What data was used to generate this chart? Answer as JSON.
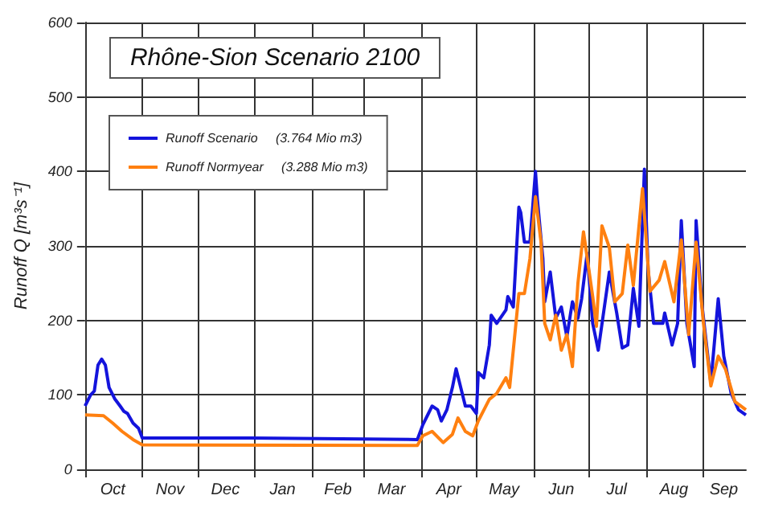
{
  "chart_data": {
    "type": "line",
    "title": "Rhône-Sion Scenario 2100",
    "ylabel": "Runoff Q [m³s⁻¹]",
    "xlim": [
      "2099-10-01",
      "2100-09-24"
    ],
    "ylim": [
      0,
      600
    ],
    "yticks": [
      0,
      100,
      200,
      300,
      400,
      500,
      600
    ],
    "xticks": [
      {
        "value": "2099-10-01",
        "label": null
      },
      {
        "value": "2099-10-16",
        "label": "Oct"
      },
      {
        "value": "2099-11-01",
        "label": null
      },
      {
        "value": "2099-11-16",
        "label": "Nov"
      },
      {
        "value": "2099-12-01",
        "label": null
      },
      {
        "value": "2099-12-16",
        "label": "Dec"
      },
      {
        "value": "2100-01-01",
        "label": null
      },
      {
        "value": "2100-01-16",
        "label": "Jan"
      },
      {
        "value": "2100-02-01",
        "label": null
      },
      {
        "value": "2100-02-15",
        "label": "Feb"
      },
      {
        "value": "2100-03-01",
        "label": null
      },
      {
        "value": "2100-03-16",
        "label": "Mar"
      },
      {
        "value": "2100-04-01",
        "label": null
      },
      {
        "value": "2100-04-16",
        "label": "Apr"
      },
      {
        "value": "2100-05-01",
        "label": null
      },
      {
        "value": "2100-05-16",
        "label": "May"
      },
      {
        "value": "2100-06-01",
        "label": null
      },
      {
        "value": "2100-06-16",
        "label": "Jun"
      },
      {
        "value": "2100-07-01",
        "label": null
      },
      {
        "value": "2100-07-16",
        "label": "Jul"
      },
      {
        "value": "2100-08-01",
        "label": null
      },
      {
        "value": "2100-08-16",
        "label": "Aug"
      },
      {
        "value": "2100-09-01",
        "label": null
      },
      {
        "value": "2100-09-12",
        "label": "Sep"
      }
    ],
    "grid": true,
    "legend": "top left",
    "marker": "none",
    "line_style": "solid",
    "series": [
      {
        "name": "Runoff Scenario     (3.764 Mio m3)",
        "color": "#1414dc",
        "x": [
          "2099-10-01",
          "2099-10-04",
          "2099-10-06",
          "2099-10-08",
          "2099-10-10",
          "2099-10-12",
          "2099-10-14",
          "2099-10-17",
          "2099-10-20",
          "2099-10-22",
          "2099-10-24",
          "2099-10-27",
          "2099-10-30",
          "2099-11-01",
          "2099-12-30",
          "2100-03-30",
          "2100-04-02",
          "2100-04-05",
          "2100-04-07",
          "2100-04-10",
          "2100-04-12",
          "2100-04-15",
          "2100-04-18",
          "2100-04-20",
          "2100-04-22",
          "2100-04-25",
          "2100-04-28",
          "2100-05-01",
          "2100-05-02",
          "2100-05-05",
          "2100-05-08",
          "2100-05-09",
          "2100-05-12",
          "2100-05-17",
          "2100-05-18",
          "2100-05-21",
          "2100-05-24",
          "2100-05-25",
          "2100-05-27",
          "2100-05-30",
          "2100-06-02",
          "2100-06-03",
          "2100-06-06",
          "2100-06-07",
          "2100-06-10",
          "2100-06-13",
          "2100-06-16",
          "2100-06-19",
          "2100-06-22",
          "2100-06-25",
          "2100-06-27",
          "2100-06-30",
          "2100-07-03",
          "2100-07-06",
          "2100-07-12",
          "2100-07-16",
          "2100-07-19",
          "2100-07-22",
          "2100-07-25",
          "2100-07-28",
          "2100-07-31",
          "2100-08-02",
          "2100-08-05",
          "2100-08-10",
          "2100-08-11",
          "2100-08-15",
          "2100-08-18",
          "2100-08-20",
          "2100-08-23",
          "2100-08-27",
          "2100-08-28",
          "2100-08-31",
          "2100-09-05",
          "2100-09-09",
          "2100-09-12",
          "2100-09-16",
          "2100-09-20",
          "2100-09-24"
        ],
        "values": [
          85,
          100,
          105,
          140,
          148,
          140,
          110,
          95,
          85,
          78,
          75,
          62,
          55,
          42,
          42,
          40,
          60,
          75,
          85,
          80,
          65,
          80,
          110,
          135,
          115,
          85,
          85,
          75,
          130,
          123,
          167,
          207,
          196,
          214,
          232,
          218,
          352,
          345,
          305,
          305,
          400,
          363,
          283,
          225,
          265,
          203,
          218,
          178,
          225,
          203,
          229,
          290,
          196,
          160,
          265,
          210,
          163,
          167,
          243,
          192,
          403,
          268,
          196,
          196,
          210,
          167,
          196,
          334,
          196,
          138,
          334,
          225,
          116,
          229,
          152,
          102,
          80,
          73
        ]
      },
      {
        "name": "Runoff Normyear     (3.288 Mio m3)",
        "color": "#ff8010",
        "x": [
          "2099-10-01",
          "2099-10-11",
          "2099-10-16",
          "2099-10-21",
          "2099-10-27",
          "2099-11-01",
          "2100-03-30",
          "2100-04-02",
          "2100-04-07",
          "2100-04-13",
          "2100-04-18",
          "2100-04-21",
          "2100-04-25",
          "2100-04-29",
          "2100-05-02",
          "2100-05-08",
          "2100-05-12",
          "2100-05-17",
          "2100-05-19",
          "2100-05-24",
          "2100-05-27",
          "2100-05-30",
          "2100-06-02",
          "2100-06-05",
          "2100-06-07",
          "2100-06-10",
          "2100-06-13",
          "2100-06-16",
          "2100-06-19",
          "2100-06-22",
          "2100-06-25",
          "2100-06-28",
          "2100-07-03",
          "2100-07-05",
          "2100-07-08",
          "2100-07-12",
          "2100-07-15",
          "2100-07-19",
          "2100-07-22",
          "2100-07-25",
          "2100-07-30",
          "2100-08-03",
          "2100-08-08",
          "2100-08-11",
          "2100-08-16",
          "2100-08-20",
          "2100-08-24",
          "2100-08-28",
          "2100-09-01",
          "2100-09-05",
          "2100-09-09",
          "2100-09-13",
          "2100-09-18",
          "2100-09-24"
        ],
        "values": [
          73,
          72,
          62,
          51,
          40,
          33,
          32,
          45,
          51,
          36,
          47,
          69,
          51,
          45,
          65,
          94,
          102,
          123,
          110,
          236,
          236,
          283,
          366,
          305,
          196,
          174,
          207,
          160,
          181,
          138,
          250,
          319,
          232,
          192,
          327,
          298,
          225,
          236,
          301,
          247,
          377,
          239,
          254,
          279,
          225,
          308,
          181,
          305,
          196,
          112,
          152,
          134,
          91,
          80
        ]
      }
    ]
  }
}
